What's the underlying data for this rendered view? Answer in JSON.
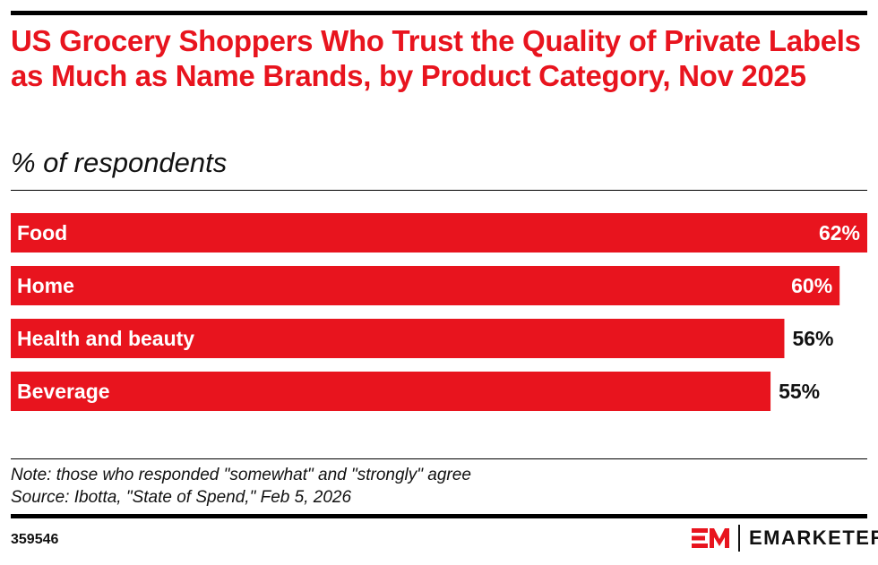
{
  "title": "US Grocery Shoppers Who Trust the Quality of Private Labels as Much as Name Brands, by Product Category, Nov 2025",
  "subtitle": "% of respondents",
  "note": "Note: those who responded \"somewhat\" and \"strongly\" agree",
  "source": "Source: Ibotta, \"State of Spend,\" Feb 5, 2026",
  "chart_id": "359546",
  "brand": "EMARKETER",
  "colors": {
    "bar": "#e8141e",
    "title": "#e8141e"
  },
  "chart_data": {
    "type": "bar",
    "orientation": "horizontal",
    "categories": [
      "Food",
      "Home",
      "Health and beauty",
      "Beverage"
    ],
    "values": [
      62,
      60,
      56,
      55
    ],
    "value_labels": [
      "62%",
      "60%",
      "56%",
      "55%"
    ],
    "title": "US Grocery Shoppers Who Trust the Quality of Private Labels as Much as Name Brands, by Product Category, Nov 2025",
    "subtitle": "% of respondents",
    "grid": false,
    "legend": "none"
  }
}
